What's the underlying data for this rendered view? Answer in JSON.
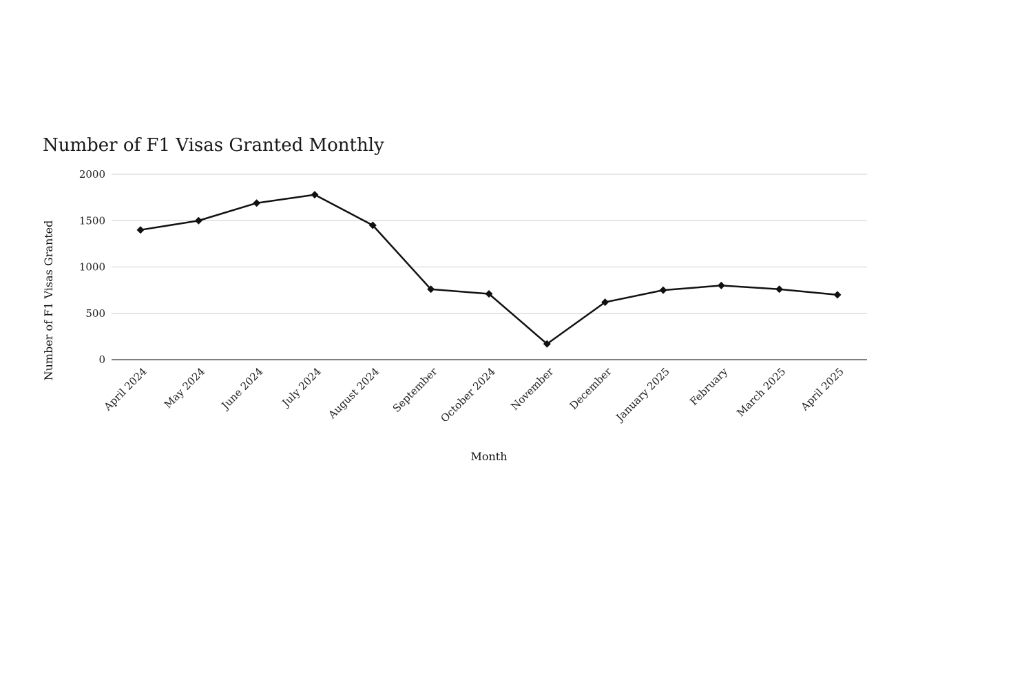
{
  "chart_data": {
    "type": "line",
    "title": "Number of F1 Visas Granted Monthly",
    "xlabel": "Month",
    "ylabel": "Number of F1 Visas Granted",
    "categories": [
      "April 2024",
      "May 2024",
      "June 2024",
      "July 2024",
      "August 2024",
      "September",
      "October 2024",
      "November",
      "December",
      "January 2025",
      "February",
      "March 2025",
      "April 2025"
    ],
    "series": [
      {
        "values": [
          1400,
          1500,
          1690,
          1780,
          1450,
          760,
          710,
          170,
          620,
          750,
          800,
          760,
          700
        ]
      }
    ],
    "ylim": [
      0,
      2000
    ],
    "yticks": [
      0,
      500,
      1000,
      1500,
      2000
    ],
    "grid": true,
    "legend": "none",
    "line_color": "#111111",
    "marker": "diamond"
  }
}
